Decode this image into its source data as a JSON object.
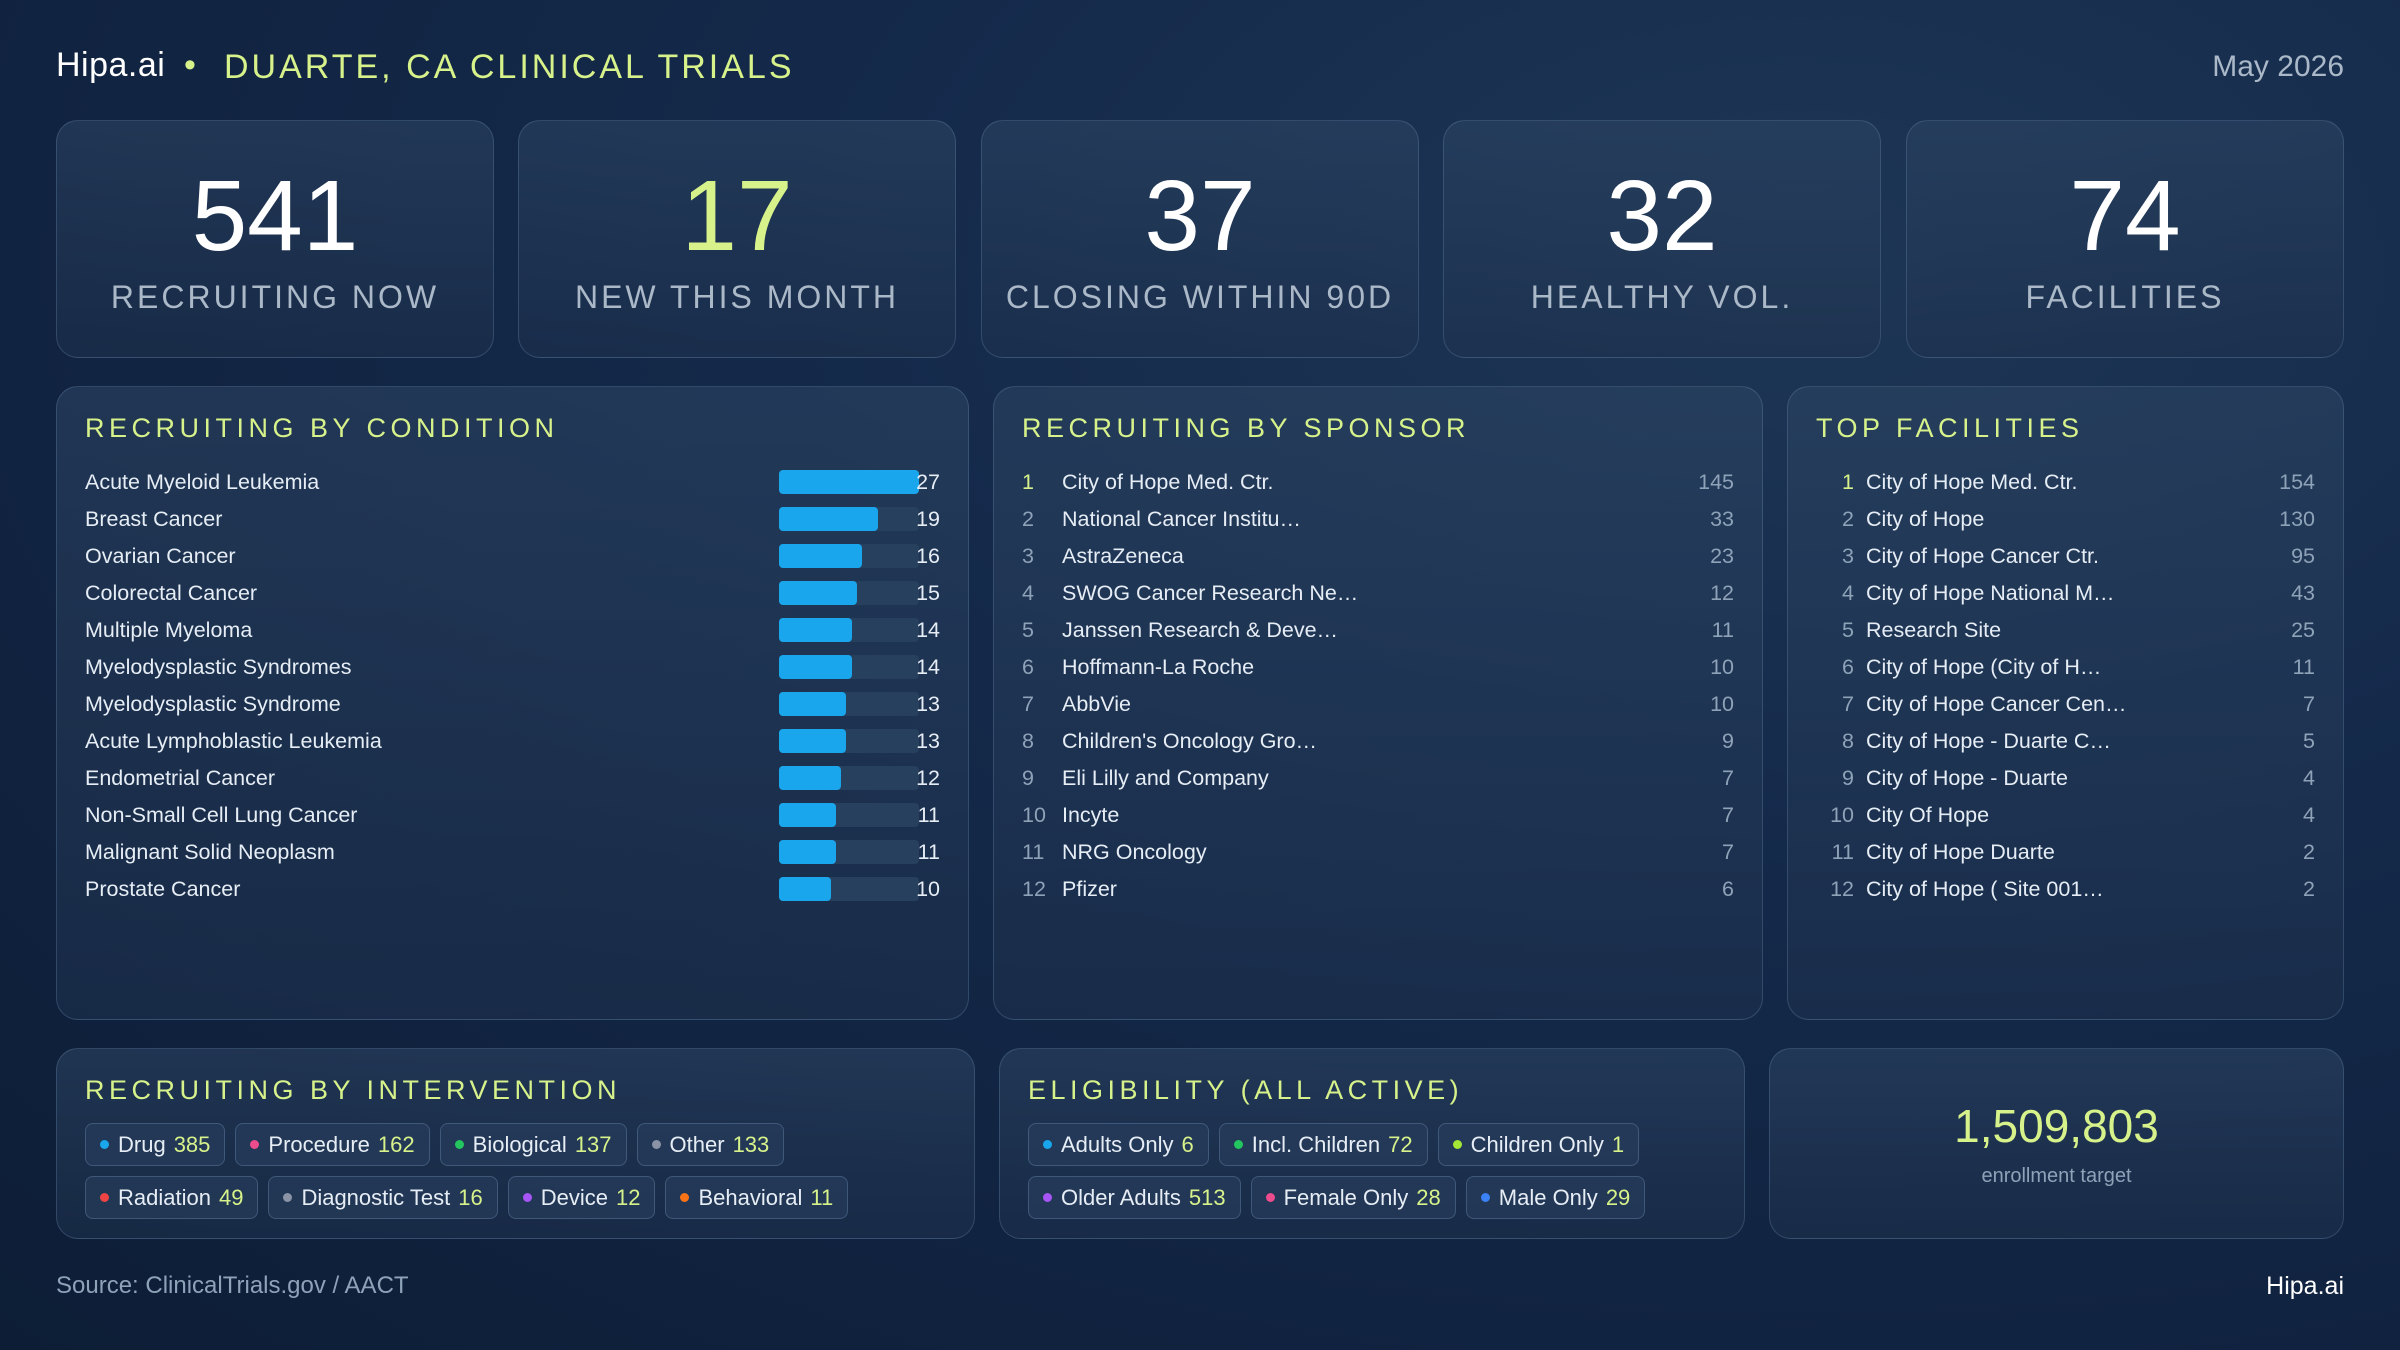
{
  "header": {
    "brand": "Hipa.ai",
    "separator": "•",
    "title": "DUARTE, CA CLINICAL TRIALS",
    "date": "May 2026"
  },
  "kpis": [
    {
      "value": "541",
      "label": "RECRUITING NOW",
      "accent": false
    },
    {
      "value": "17",
      "label": "NEW THIS MONTH",
      "accent": true
    },
    {
      "value": "37",
      "label": "CLOSING WITHIN 90D",
      "accent": false
    },
    {
      "value": "32",
      "label": "HEALTHY VOL.",
      "accent": false
    },
    {
      "value": "74",
      "label": "FACILITIES",
      "accent": false
    }
  ],
  "conditions": {
    "title": "RECRUITING BY CONDITION",
    "max": 27,
    "items": [
      {
        "name": "Acute Myeloid Leukemia",
        "value": 27
      },
      {
        "name": "Breast Cancer",
        "value": 19
      },
      {
        "name": "Ovarian Cancer",
        "value": 16
      },
      {
        "name": "Colorectal Cancer",
        "value": 15
      },
      {
        "name": "Multiple Myeloma",
        "value": 14
      },
      {
        "name": "Myelodysplastic Syndromes",
        "value": 14
      },
      {
        "name": "Myelodysplastic Syndrome",
        "value": 13
      },
      {
        "name": "Acute Lymphoblastic Leukemia",
        "value": 13
      },
      {
        "name": "Endometrial Cancer",
        "value": 12
      },
      {
        "name": "Non-Small Cell Lung Cancer",
        "value": 11
      },
      {
        "name": "Malignant Solid Neoplasm",
        "value": 11
      },
      {
        "name": "Prostate Cancer",
        "value": 10
      }
    ]
  },
  "sponsors": {
    "title": "RECRUITING BY SPONSOR",
    "items": [
      {
        "rank": "1",
        "name": "City of Hope Med. Ctr.",
        "value": "145"
      },
      {
        "rank": "2",
        "name": "National Cancer Institu…",
        "value": "33"
      },
      {
        "rank": "3",
        "name": "AstraZeneca",
        "value": "23"
      },
      {
        "rank": "4",
        "name": "SWOG Cancer Research Ne…",
        "value": "12"
      },
      {
        "rank": "5",
        "name": "Janssen Research & Deve…",
        "value": "11"
      },
      {
        "rank": "6",
        "name": "Hoffmann-La Roche",
        "value": "10"
      },
      {
        "rank": "7",
        "name": "AbbVie",
        "value": "10"
      },
      {
        "rank": "8",
        "name": "Children's Oncology Gro…",
        "value": "9"
      },
      {
        "rank": "9",
        "name": "Eli Lilly and Company",
        "value": "7"
      },
      {
        "rank": "10",
        "name": "Incyte",
        "value": "7"
      },
      {
        "rank": "11",
        "name": "NRG Oncology",
        "value": "7"
      },
      {
        "rank": "12",
        "name": "Pfizer",
        "value": "6"
      }
    ]
  },
  "facilities": {
    "title": "TOP FACILITIES",
    "items": [
      {
        "rank": "1",
        "name": "City of Hope Med. Ctr.",
        "value": "154"
      },
      {
        "rank": "2",
        "name": "City of Hope",
        "value": "130"
      },
      {
        "rank": "3",
        "name": "City of Hope Cancer Ctr.",
        "value": "95"
      },
      {
        "rank": "4",
        "name": "City of Hope National M…",
        "value": "43"
      },
      {
        "rank": "5",
        "name": "Research Site",
        "value": "25"
      },
      {
        "rank": "6",
        "name": "City of Hope (City of H…",
        "value": "11"
      },
      {
        "rank": "7",
        "name": "City of Hope Cancer Cen…",
        "value": "7"
      },
      {
        "rank": "8",
        "name": "City of Hope - Duarte C…",
        "value": "5"
      },
      {
        "rank": "9",
        "name": "City of Hope - Duarte",
        "value": "4"
      },
      {
        "rank": "10",
        "name": "City Of Hope",
        "value": "4"
      },
      {
        "rank": "11",
        "name": "City of Hope Duarte",
        "value": "2"
      },
      {
        "rank": "12",
        "name": "City of Hope ( Site 001…",
        "value": "2"
      }
    ]
  },
  "interventions": {
    "title": "RECRUITING BY INTERVENTION",
    "lines": [
      [
        {
          "label": "Drug",
          "value": "385",
          "color": "#1aa6ec"
        },
        {
          "label": "Procedure",
          "value": "162",
          "color": "#ec4c8c"
        },
        {
          "label": "Biological",
          "value": "137",
          "color": "#22c55e"
        },
        {
          "label": "Other",
          "value": "133",
          "color": "#8a94a6"
        }
      ],
      [
        {
          "label": "Radiation",
          "value": "49",
          "color": "#ef4444"
        },
        {
          "label": "Diagnostic Test",
          "value": "16",
          "color": "#8a94a6"
        },
        {
          "label": "Device",
          "value": "12",
          "color": "#a855f7"
        },
        {
          "label": "Behavioral",
          "value": "11",
          "color": "#f97316"
        }
      ]
    ]
  },
  "eligibility": {
    "title": "ELIGIBILITY (ALL ACTIVE)",
    "lines": [
      [
        {
          "label": "Adults Only",
          "value": "6",
          "color": "#1aa6ec"
        },
        {
          "label": "Incl. Children",
          "value": "72",
          "color": "#22c55e"
        },
        {
          "label": "Children Only",
          "value": "1",
          "color": "#a3e635"
        }
      ],
      [
        {
          "label": "Older Adults",
          "value": "513",
          "color": "#a855f7"
        },
        {
          "label": "Female Only",
          "value": "28",
          "color": "#ec4c8c"
        },
        {
          "label": "Male Only",
          "value": "29",
          "color": "#3b82f6"
        }
      ]
    ]
  },
  "enrollment": {
    "value": "1,509,803",
    "caption": "enrollment target"
  },
  "footer": {
    "source": "Source: ClinicalTrials.gov /  AACT",
    "brand": "Hipa.ai"
  }
}
